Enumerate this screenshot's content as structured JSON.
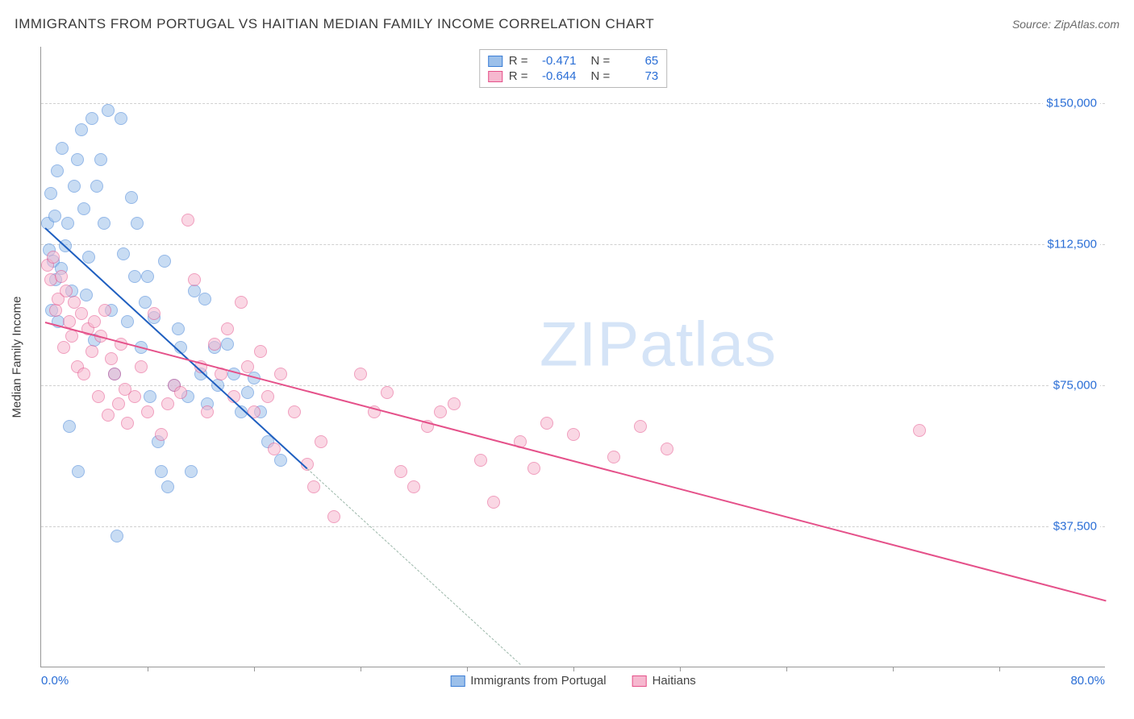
{
  "title": "IMMIGRANTS FROM PORTUGAL VS HAITIAN MEDIAN FAMILY INCOME CORRELATION CHART",
  "source": "Source: ZipAtlas.com",
  "watermark": "ZIPatlas",
  "y_axis_label": "Median Family Income",
  "chart": {
    "type": "scatter",
    "background_color": "#ffffff",
    "grid_color": "#d0d0d0",
    "axis_color": "#979797",
    "xlim": [
      0,
      80
    ],
    "ylim": [
      0,
      165000
    ],
    "x_min_label": "0.0%",
    "x_max_label": "80.0%",
    "x_tick_positions": [
      8,
      16,
      24,
      32,
      40,
      48,
      56,
      64,
      72
    ],
    "y_ticks": [
      {
        "v": 37500,
        "label": "$37,500"
      },
      {
        "v": 75000,
        "label": "$75,000"
      },
      {
        "v": 112500,
        "label": "$112,500"
      },
      {
        "v": 150000,
        "label": "$150,000"
      }
    ],
    "dot_radius": 8,
    "dot_opacity": 0.55,
    "series": [
      {
        "name": "Immigrants from Portugal",
        "fill": "#9cc0ea",
        "stroke": "#3d7fd6",
        "trend_color": "#1f5fc0",
        "trend_width": 2.4,
        "dash_color": "#9bb7a9",
        "R": "-0.471",
        "N": "65",
        "trend": {
          "x1": 0.3,
          "y1": 117000,
          "x2": 20,
          "y2": 53000
        },
        "trend_dash": {
          "x1": 20,
          "y1": 53000,
          "x2": 36,
          "y2": 1000
        },
        "points": [
          [
            0.5,
            118000
          ],
          [
            0.6,
            111000
          ],
          [
            0.7,
            126000
          ],
          [
            0.8,
            95000
          ],
          [
            0.9,
            108000
          ],
          [
            1.0,
            120000
          ],
          [
            1.1,
            103000
          ],
          [
            1.2,
            132000
          ],
          [
            1.3,
            92000
          ],
          [
            1.5,
            106000
          ],
          [
            1.6,
            138000
          ],
          [
            1.8,
            112000
          ],
          [
            2.0,
            118000
          ],
          [
            2.1,
            64000
          ],
          [
            2.3,
            100000
          ],
          [
            2.5,
            128000
          ],
          [
            2.7,
            135000
          ],
          [
            2.8,
            52000
          ],
          [
            3.0,
            143000
          ],
          [
            3.2,
            122000
          ],
          [
            3.4,
            99000
          ],
          [
            3.6,
            109000
          ],
          [
            3.8,
            146000
          ],
          [
            4.0,
            87000
          ],
          [
            4.2,
            128000
          ],
          [
            4.5,
            135000
          ],
          [
            4.7,
            118000
          ],
          [
            5.0,
            148000
          ],
          [
            5.3,
            95000
          ],
          [
            5.5,
            78000
          ],
          [
            5.7,
            35000
          ],
          [
            6.0,
            146000
          ],
          [
            6.2,
            110000
          ],
          [
            6.5,
            92000
          ],
          [
            6.8,
            125000
          ],
          [
            7.0,
            104000
          ],
          [
            7.2,
            118000
          ],
          [
            7.5,
            85000
          ],
          [
            7.8,
            97000
          ],
          [
            8.0,
            104000
          ],
          [
            8.2,
            72000
          ],
          [
            8.5,
            93000
          ],
          [
            8.8,
            60000
          ],
          [
            9.0,
            52000
          ],
          [
            9.3,
            108000
          ],
          [
            9.5,
            48000
          ],
          [
            10.0,
            75000
          ],
          [
            10.3,
            90000
          ],
          [
            10.5,
            85000
          ],
          [
            11.0,
            72000
          ],
          [
            11.3,
            52000
          ],
          [
            11.5,
            100000
          ],
          [
            12.0,
            78000
          ],
          [
            12.3,
            98000
          ],
          [
            12.5,
            70000
          ],
          [
            13.0,
            85000
          ],
          [
            13.3,
            75000
          ],
          [
            14.0,
            86000
          ],
          [
            14.5,
            78000
          ],
          [
            15.0,
            68000
          ],
          [
            15.5,
            73000
          ],
          [
            16.0,
            77000
          ],
          [
            16.5,
            68000
          ],
          [
            17.0,
            60000
          ],
          [
            18.0,
            55000
          ]
        ]
      },
      {
        "name": "Haitians",
        "fill": "#f6b8cf",
        "stroke": "#e5518a",
        "trend_color": "#e5518a",
        "trend_width": 2.4,
        "R": "-0.644",
        "N": "73",
        "trend": {
          "x1": 0.3,
          "y1": 92000,
          "x2": 80,
          "y2": 18000
        },
        "points": [
          [
            0.5,
            107000
          ],
          [
            0.7,
            103000
          ],
          [
            0.9,
            109000
          ],
          [
            1.1,
            95000
          ],
          [
            1.3,
            98000
          ],
          [
            1.5,
            104000
          ],
          [
            1.7,
            85000
          ],
          [
            1.9,
            100000
          ],
          [
            2.1,
            92000
          ],
          [
            2.3,
            88000
          ],
          [
            2.5,
            97000
          ],
          [
            2.7,
            80000
          ],
          [
            3.0,
            94000
          ],
          [
            3.2,
            78000
          ],
          [
            3.5,
            90000
          ],
          [
            3.8,
            84000
          ],
          [
            4.0,
            92000
          ],
          [
            4.3,
            72000
          ],
          [
            4.5,
            88000
          ],
          [
            4.8,
            95000
          ],
          [
            5.0,
            67000
          ],
          [
            5.3,
            82000
          ],
          [
            5.5,
            78000
          ],
          [
            5.8,
            70000
          ],
          [
            6.0,
            86000
          ],
          [
            6.3,
            74000
          ],
          [
            6.5,
            65000
          ],
          [
            7.0,
            72000
          ],
          [
            7.5,
            80000
          ],
          [
            8.0,
            68000
          ],
          [
            8.5,
            94000
          ],
          [
            9.0,
            62000
          ],
          [
            9.5,
            70000
          ],
          [
            10.0,
            75000
          ],
          [
            10.5,
            73000
          ],
          [
            11.0,
            119000
          ],
          [
            11.5,
            103000
          ],
          [
            12.0,
            80000
          ],
          [
            12.5,
            68000
          ],
          [
            13.0,
            86000
          ],
          [
            13.5,
            78000
          ],
          [
            14.0,
            90000
          ],
          [
            14.5,
            72000
          ],
          [
            15.0,
            97000
          ],
          [
            15.5,
            80000
          ],
          [
            16.0,
            68000
          ],
          [
            16.5,
            84000
          ],
          [
            17.0,
            72000
          ],
          [
            17.5,
            58000
          ],
          [
            18.0,
            78000
          ],
          [
            19.0,
            68000
          ],
          [
            20.0,
            54000
          ],
          [
            20.5,
            48000
          ],
          [
            21.0,
            60000
          ],
          [
            22.0,
            40000
          ],
          [
            24.0,
            78000
          ],
          [
            25.0,
            68000
          ],
          [
            26.0,
            73000
          ],
          [
            27.0,
            52000
          ],
          [
            28.0,
            48000
          ],
          [
            29.0,
            64000
          ],
          [
            30.0,
            68000
          ],
          [
            31.0,
            70000
          ],
          [
            33.0,
            55000
          ],
          [
            34.0,
            44000
          ],
          [
            36.0,
            60000
          ],
          [
            37.0,
            53000
          ],
          [
            38.0,
            65000
          ],
          [
            40.0,
            62000
          ],
          [
            43.0,
            56000
          ],
          [
            45.0,
            64000
          ],
          [
            47.0,
            58000
          ],
          [
            66.0,
            63000
          ]
        ]
      }
    ]
  },
  "legend_top_labels": {
    "R": "R =",
    "N": "N ="
  },
  "text_color": "#3a3a3a",
  "value_color": "#2a6ed6"
}
